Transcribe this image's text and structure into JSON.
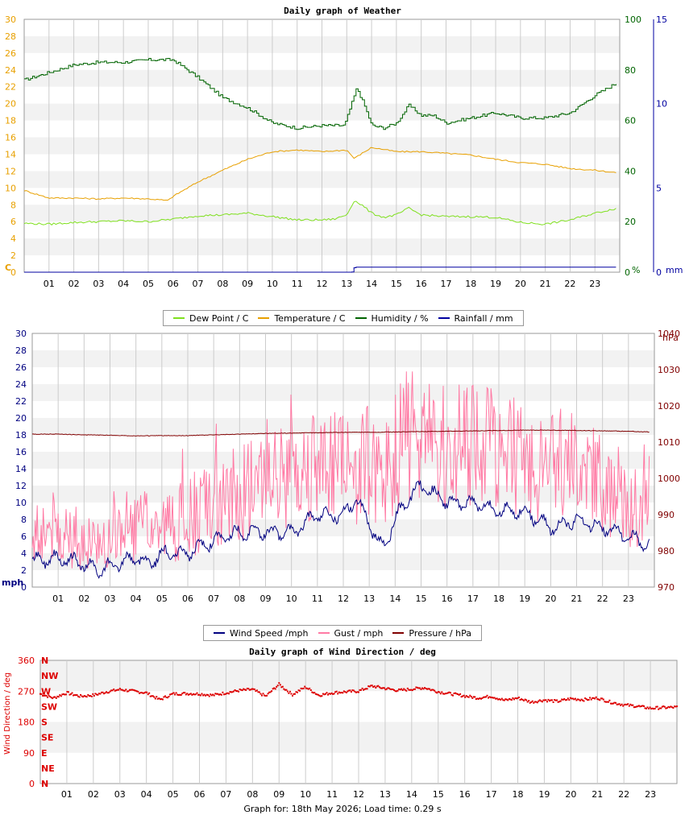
{
  "colors": {
    "dew": "#7fe01e",
    "temp": "#e8a000",
    "hum": "#006400",
    "rain": "#0000a0",
    "wind": "#000080",
    "gust": "#ff7aa4",
    "pres": "#800000",
    "dir": "#dd0000",
    "grid": "#cccccc",
    "band": "#f2f2f2"
  },
  "weather": {
    "title": "Daily graph of Weather",
    "left_unit": "C",
    "hum_unit": "%",
    "rain_unit": "mm",
    "left_ticks": [
      "0",
      "2",
      "4",
      "6",
      "8",
      "10",
      "12",
      "14",
      "16",
      "18",
      "20",
      "22",
      "24",
      "26",
      "28",
      "30"
    ],
    "hum_ticks": [
      "0",
      "20",
      "40",
      "60",
      "80",
      "100"
    ],
    "rain_ticks": [
      "0",
      "5",
      "10",
      "15"
    ],
    "hours": [
      "01",
      "02",
      "03",
      "04",
      "05",
      "06",
      "07",
      "08",
      "09",
      "10",
      "11",
      "12",
      "13",
      "14",
      "15",
      "16",
      "17",
      "18",
      "19",
      "20",
      "21",
      "22",
      "23"
    ],
    "legend": [
      {
        "label": "Dew Point / C",
        "color": "#7fe01e"
      },
      {
        "label": "Temperature / C",
        "color": "#e8a000"
      },
      {
        "label": "Humidity / %",
        "color": "#006400"
      },
      {
        "label": "Rainfall / mm",
        "color": "#0000a0"
      }
    ]
  },
  "wind": {
    "left_unit": "mph",
    "right_unit": "hPa",
    "left_ticks": [
      "0",
      "2",
      "4",
      "6",
      "8",
      "10",
      "12",
      "14",
      "16",
      "18",
      "20",
      "22",
      "24",
      "26",
      "28",
      "30"
    ],
    "right_ticks": [
      "970",
      "980",
      "990",
      "1000",
      "1010",
      "1020",
      "1030",
      "1040"
    ],
    "hours": [
      "01",
      "02",
      "03",
      "04",
      "05",
      "06",
      "07",
      "08",
      "09",
      "10",
      "11",
      "12",
      "13",
      "14",
      "15",
      "16",
      "17",
      "18",
      "19",
      "20",
      "21",
      "22",
      "23"
    ],
    "legend": [
      {
        "label": "Wind Speed /mph",
        "color": "#000080"
      },
      {
        "label": "Gust / mph",
        "color": "#ff7aa4"
      },
      {
        "label": "Pressure / hPa",
        "color": "#800000"
      }
    ]
  },
  "direction": {
    "title": "Daily graph of Wind Direction / deg",
    "ylabel": "Wind Direction / deg",
    "deg_ticks": [
      "0",
      "90",
      "180",
      "270",
      "360"
    ],
    "compass": [
      "N",
      "NE",
      "E",
      "SE",
      "S",
      "SW",
      "W",
      "NW",
      "N"
    ],
    "hours": [
      "01",
      "02",
      "03",
      "04",
      "05",
      "06",
      "07",
      "08",
      "09",
      "10",
      "11",
      "12",
      "13",
      "14",
      "15",
      "16",
      "17",
      "18",
      "19",
      "20",
      "21",
      "22",
      "23"
    ]
  },
  "footer": "Graph for: 18th May 2026; Load time: 0.29 s",
  "chart_data": [
    {
      "type": "line",
      "title": "Daily graph of Weather",
      "x_label": "hour",
      "xlim": [
        0,
        24
      ],
      "ylim_left": [
        0,
        30
      ],
      "ylim_humidity": [
        0,
        100
      ],
      "ylim_rain": [
        0,
        15
      ],
      "grid": true,
      "legend_position": "bottom",
      "series": [
        {
          "name": "Dew Point / C",
          "axis": "left",
          "x": [
            0,
            1,
            2,
            3,
            4,
            5,
            6,
            7,
            8,
            9,
            10,
            11,
            12,
            12.5,
            13,
            13.3,
            13.6,
            14,
            14.5,
            15,
            15.5,
            16,
            16.5,
            17,
            18,
            19,
            20,
            21,
            22,
            23,
            23.9
          ],
          "values": [
            5.8,
            5.7,
            5.9,
            6.0,
            6.1,
            6.0,
            6.3,
            6.7,
            6.8,
            7.0,
            6.6,
            6.2,
            6.2,
            6.3,
            6.8,
            8.5,
            8.0,
            7.0,
            6.5,
            6.8,
            7.6,
            6.8,
            6.7,
            6.6,
            6.6,
            6.5,
            5.9,
            5.7,
            6.2,
            7.0,
            7.6
          ]
        },
        {
          "name": "Temperature / C",
          "axis": "left",
          "x": [
            0,
            1,
            2,
            3,
            4,
            5,
            5.8,
            6,
            7,
            8,
            9,
            10,
            11,
            12,
            13,
            13.3,
            14,
            15,
            16,
            17,
            18,
            19,
            20,
            21,
            22,
            23,
            23.9
          ],
          "values": [
            9.7,
            8.8,
            8.8,
            8.7,
            8.8,
            8.7,
            8.5,
            9.0,
            10.7,
            12.1,
            13.4,
            14.3,
            14.5,
            14.3,
            14.5,
            13.5,
            14.8,
            14.3,
            14.3,
            14.1,
            13.9,
            13.4,
            13.0,
            12.8,
            12.3,
            12.1,
            11.8
          ]
        },
        {
          "name": "Humidity / %",
          "axis": "humidity",
          "x": [
            0,
            1,
            2,
            3,
            4,
            5,
            6,
            7,
            8,
            9,
            10,
            11,
            12,
            12.9,
            13.4,
            13.7,
            14,
            14.5,
            15,
            15.5,
            16,
            16.5,
            17,
            18,
            19,
            20,
            21,
            22,
            23,
            23.9
          ],
          "values": [
            76,
            79,
            82,
            83,
            83,
            84,
            84,
            77,
            69,
            65,
            59,
            57,
            58,
            58,
            73,
            66,
            58,
            57,
            59,
            66,
            62,
            62,
            59,
            61,
            63,
            61,
            61,
            63,
            70,
            75
          ]
        },
        {
          "name": "Rainfall / mm",
          "axis": "rain",
          "x": [
            0,
            13.2,
            13.3,
            24
          ],
          "values": [
            0,
            0,
            0.3,
            0.3
          ]
        }
      ]
    },
    {
      "type": "line",
      "title": "",
      "xlim": [
        0,
        24
      ],
      "ylim_left": [
        0,
        30
      ],
      "ylim_pressure": [
        970,
        1040
      ],
      "grid": true,
      "legend_position": "bottom",
      "series": [
        {
          "name": "Wind Speed /mph",
          "axis": "left",
          "x": [
            0,
            1,
            2,
            2.5,
            3,
            4,
            4.5,
            5,
            6,
            7,
            8,
            9,
            10,
            11,
            12,
            12.5,
            13,
            13.5,
            14,
            14.5,
            15,
            16,
            17,
            18,
            19,
            20,
            21,
            22,
            23,
            23.8
          ],
          "values": [
            3,
            3.5,
            2.8,
            2.0,
            2.5,
            3.5,
            2.8,
            4.0,
            4.0,
            5.5,
            6.5,
            6.5,
            6.5,
            8.5,
            8.5,
            10.5,
            7.5,
            4.5,
            8.0,
            10.5,
            12.0,
            10.0,
            10.0,
            9.0,
            9.0,
            7.0,
            8.0,
            7.0,
            6.0,
            5.0
          ]
        },
        {
          "name": "Gust / mph",
          "axis": "left",
          "x": [
            0,
            1,
            2,
            2.5,
            3,
            4,
            5,
            6,
            7,
            8,
            9,
            10,
            11,
            12,
            12.5,
            13,
            13.5,
            14,
            14.5,
            15,
            16,
            17,
            18,
            19,
            20,
            21,
            22,
            23,
            23.8
          ],
          "values": [
            7,
            7,
            6,
            5,
            7,
            7,
            7,
            8,
            10,
            11,
            12,
            14,
            14,
            14,
            14,
            15,
            13,
            16,
            18,
            17,
            17,
            17,
            16,
            15,
            14,
            14,
            12,
            10,
            8
          ]
        },
        {
          "name": "Pressure / hPa",
          "axis": "pressure",
          "x": [
            0,
            1,
            2,
            3,
            4,
            5,
            6,
            7,
            8,
            9,
            10,
            11,
            12,
            13,
            14,
            15,
            16,
            17,
            18,
            19,
            20,
            21,
            22,
            23,
            23.8
          ],
          "values": [
            1012.2,
            1012.2,
            1012,
            1011.9,
            1011.7,
            1011.8,
            1011.8,
            1012,
            1012.2,
            1012.4,
            1012.5,
            1012.6,
            1012.7,
            1012.7,
            1012.8,
            1012.9,
            1013,
            1013.1,
            1013.2,
            1013.3,
            1013.3,
            1013.2,
            1013.1,
            1013,
            1012.8
          ]
        }
      ]
    },
    {
      "type": "scatter",
      "title": "Daily graph of Wind Direction / deg",
      "ylabel": "Wind Direction / deg",
      "xlim": [
        0,
        24
      ],
      "ylim": [
        0,
        360
      ],
      "grid": true,
      "series": [
        {
          "name": "Wind Direction / deg",
          "x": [
            0,
            0.5,
            1,
            1.5,
            2,
            2.5,
            3,
            3.5,
            4,
            4.5,
            5,
            5.5,
            6,
            6.5,
            7,
            7.5,
            8,
            8.5,
            9,
            9.5,
            10,
            10.5,
            11,
            11.5,
            12,
            12.5,
            13,
            13.5,
            14,
            14.5,
            15,
            15.5,
            16,
            16.5,
            17,
            17.5,
            18,
            18.5,
            19,
            19.5,
            20,
            20.5,
            21,
            21.5,
            22,
            22.5,
            23,
            23.5,
            24
          ],
          "values": [
            262,
            250,
            265,
            255,
            258,
            268,
            275,
            270,
            265,
            245,
            262,
            263,
            262,
            258,
            265,
            272,
            275,
            255,
            290,
            260,
            282,
            258,
            265,
            268,
            270,
            285,
            278,
            272,
            276,
            280,
            268,
            262,
            256,
            250,
            255,
            243,
            250,
            238,
            244,
            240,
            248,
            245,
            250,
            238,
            230,
            226,
            220,
            222,
            223
          ]
        }
      ]
    }
  ]
}
